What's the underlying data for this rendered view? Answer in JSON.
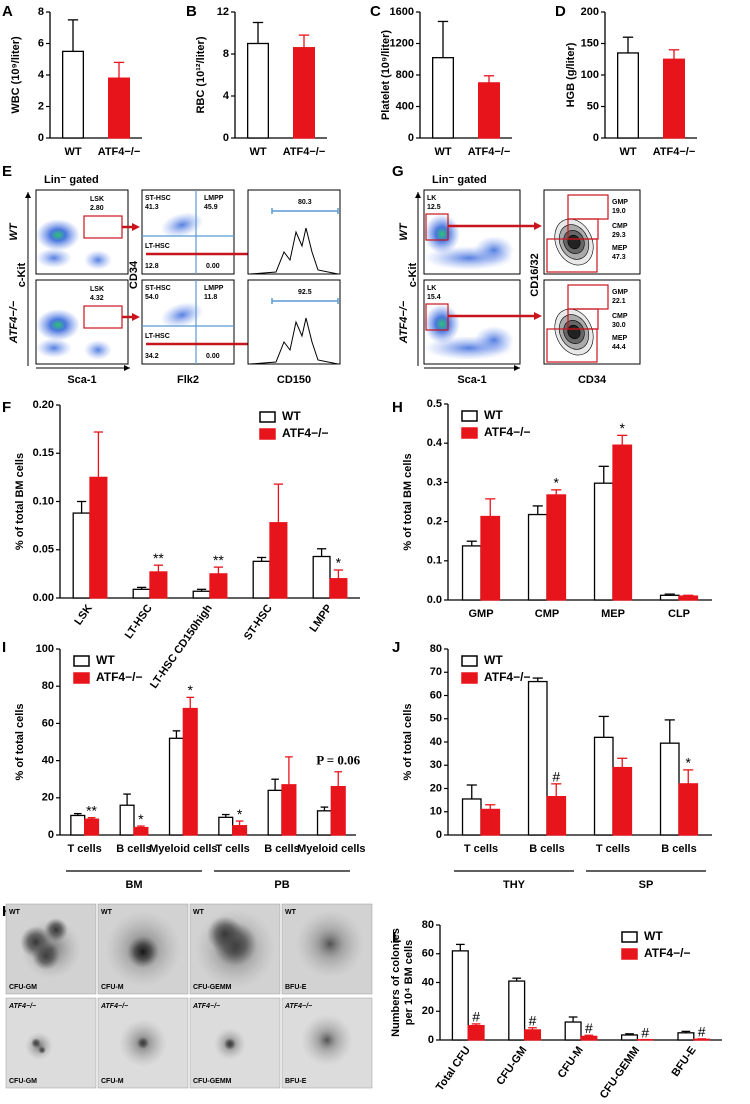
{
  "chart_data": [
    {
      "type": "bar",
      "panel": "A",
      "ylabel": "WBC (10⁹/liter)",
      "categories": [
        "WT",
        "ATF4−/−"
      ],
      "values": [
        5.5,
        3.8
      ],
      "errors": [
        2.0,
        1.0
      ],
      "colors": [
        "#ffffff",
        "#e8141c"
      ],
      "edgecolors": [
        "#000000",
        "#e8141c"
      ],
      "ylim": [
        0,
        8
      ],
      "yticks": [
        0,
        2,
        4,
        6,
        8
      ]
    },
    {
      "type": "bar",
      "panel": "B",
      "ylabel": "RBC (10¹²/liter)",
      "categories": [
        "WT",
        "ATF4−/−"
      ],
      "values": [
        9.0,
        8.6
      ],
      "errors": [
        2.0,
        1.2
      ],
      "colors": [
        "#ffffff",
        "#e8141c"
      ],
      "edgecolors": [
        "#000000",
        "#e8141c"
      ],
      "ylim": [
        0,
        12
      ],
      "yticks": [
        0,
        4,
        8,
        12
      ]
    },
    {
      "type": "bar",
      "panel": "C",
      "ylabel": "Platelet (10⁹/liter)",
      "categories": [
        "WT",
        "ATF4−/−"
      ],
      "values": [
        1020,
        700
      ],
      "errors": [
        460,
        90
      ],
      "colors": [
        "#ffffff",
        "#e8141c"
      ],
      "edgecolors": [
        "#000000",
        "#e8141c"
      ],
      "ylim": [
        0,
        1600
      ],
      "yticks": [
        0,
        400,
        800,
        1200,
        1600
      ]
    },
    {
      "type": "bar",
      "panel": "D",
      "ylabel": "HGB (g/liter)",
      "categories": [
        "WT",
        "ATF4−/−"
      ],
      "values": [
        135,
        125
      ],
      "errors": [
        25,
        15
      ],
      "colors": [
        "#ffffff",
        "#e8141c"
      ],
      "edgecolors": [
        "#000000",
        "#e8141c"
      ],
      "ylim": [
        0,
        200
      ],
      "yticks": [
        0,
        50,
        100,
        150,
        200
      ]
    },
    {
      "type": "bar",
      "panel": "F",
      "ylabel": "% of total BM cells",
      "legend": "top-right",
      "categories": [
        "LSK",
        "LT-HSC",
        "LT-HSC CD150high",
        "ST-HSC",
        "LMPP"
      ],
      "series": [
        {
          "name": "WT",
          "color": "#ffffff",
          "edgecolor": "#000000",
          "values": [
            0.088,
            0.009,
            0.007,
            0.038,
            0.043
          ],
          "errors": [
            0.012,
            0.002,
            0.002,
            0.004,
            0.008
          ]
        },
        {
          "name": "ATF4−/−",
          "color": "#e8141c",
          "edgecolor": "#e8141c",
          "values": [
            0.125,
            0.027,
            0.025,
            0.078,
            0.02
          ],
          "errors": [
            0.047,
            0.007,
            0.007,
            0.04,
            0.009
          ]
        }
      ],
      "significance": [
        null,
        "**",
        "**",
        null,
        "*"
      ],
      "ylim": [
        0,
        0.2
      ],
      "yticks": [
        {
          "value": 0,
          "label": "0.00"
        },
        0.05,
        {
          "value": 0.1,
          "label": "0.10"
        },
        0.15,
        {
          "value": 0.2,
          "label": "0.20"
        }
      ]
    },
    {
      "type": "bar",
      "panel": "H",
      "ylabel": "% of total BM cells",
      "legend": "top-left",
      "categories": [
        "GMP",
        "CMP",
        "MEP",
        "CLP"
      ],
      "series": [
        {
          "name": "WT",
          "color": "#ffffff",
          "edgecolor": "#000000",
          "values": [
            0.138,
            0.218,
            0.298,
            0.012
          ],
          "errors": [
            0.012,
            0.022,
            0.043,
            0.003
          ]
        },
        {
          "name": "ATF4−/−",
          "color": "#e8141c",
          "edgecolor": "#e8141c",
          "values": [
            0.213,
            0.268,
            0.395,
            0.01
          ],
          "errors": [
            0.045,
            0.013,
            0.025,
            0.002
          ]
        }
      ],
      "significance": [
        null,
        "*",
        "*",
        null
      ],
      "ylim": [
        0,
        0.5
      ],
      "yticks": [
        {
          "value": 0,
          "label": "0.0"
        },
        0.1,
        0.2,
        0.3,
        0.4,
        0.5
      ]
    },
    {
      "type": "bar",
      "panel": "I",
      "ylabel": "% of total cells",
      "legend": "top-left",
      "categories": [
        "T cells",
        "B cells",
        "Myeloid cells",
        "T cells",
        "B cells",
        "Myeloid cells"
      ],
      "groups": [
        "BM",
        "PB"
      ],
      "series": [
        {
          "name": "WT",
          "color": "#ffffff",
          "edgecolor": "#000000",
          "values": [
            10.5,
            16,
            52,
            9.5,
            24,
            13
          ],
          "errors": [
            1,
            6,
            4,
            1.5,
            6,
            2
          ]
        },
        {
          "name": "ATF4−/−",
          "color": "#e8141c",
          "edgecolor": "#e8141c",
          "values": [
            8.5,
            4,
            68,
            5,
            27,
            26
          ],
          "errors": [
            0.8,
            0.8,
            6,
            2.5,
            15,
            8
          ]
        }
      ],
      "significance": [
        "**",
        "*",
        "*",
        "*",
        null,
        "P = 0.06"
      ],
      "ylim": [
        0,
        100
      ],
      "yticks": [
        0,
        20,
        40,
        60,
        80,
        100
      ]
    },
    {
      "type": "bar",
      "panel": "J",
      "ylabel": "% of total cells",
      "legend": "top-left",
      "categories": [
        "T cells",
        "B cells",
        "T cells",
        "B cells"
      ],
      "groups": [
        "THY",
        "SP"
      ],
      "series": [
        {
          "name": "WT",
          "color": "#ffffff",
          "edgecolor": "#000000",
          "values": [
            15.5,
            66,
            42,
            39.5
          ],
          "errors": [
            6,
            1.5,
            9,
            10
          ]
        },
        {
          "name": "ATF4−/−",
          "color": "#e8141c",
          "edgecolor": "#e8141c",
          "values": [
            11,
            16.5,
            29,
            22
          ],
          "errors": [
            2,
            5.5,
            4,
            6
          ]
        }
      ],
      "significance": [
        null,
        "#",
        null,
        "*"
      ],
      "ylim": [
        0,
        80
      ],
      "yticks": [
        0,
        10,
        20,
        30,
        40,
        50,
        60,
        70,
        80
      ]
    },
    {
      "type": "bar",
      "panel": "L",
      "ylabel": [
        "Numbers of colonies",
        "per 10⁴ BM cells"
      ],
      "legend": "top-right",
      "categories": [
        "Total CFU",
        "CFU-GM",
        "CFU-M",
        "CFU-GEMM",
        "BFU-E"
      ],
      "series": [
        {
          "name": "WT",
          "color": "#ffffff",
          "edgecolor": "#000000",
          "values": [
            62,
            41,
            12.5,
            3.5,
            5
          ],
          "errors": [
            4.5,
            2,
            3.5,
            0.8,
            1
          ]
        },
        {
          "name": "ATF4−/−",
          "color": "#e8141c",
          "edgecolor": "#e8141c",
          "values": [
            10,
            7,
            2.5,
            0.2,
            0.5
          ],
          "errors": [
            1.2,
            1.5,
            0.8,
            0.1,
            0.3
          ]
        }
      ],
      "significance": [
        "#",
        "#",
        "#",
        "#",
        "#"
      ],
      "ylim": [
        0,
        80
      ],
      "yticks": [
        0,
        20,
        40,
        60,
        80
      ]
    }
  ],
  "flow_e": {
    "panel": "E",
    "gate_label": "Lin⁻ gated",
    "row_labels": [
      "WT",
      "ATF4−/−"
    ],
    "x_axes": [
      "Sca-1",
      "Flk2",
      "CD150"
    ],
    "y_axes": [
      "c-Kit",
      "CD34"
    ],
    "gate_names": [
      "LSK",
      "ST-HSC",
      "LMPP",
      "LT-HSC"
    ],
    "rows": [
      {
        "lsk": "2.80",
        "st_hsc": 41.3,
        "lmpp": 45.9,
        "lt_hsc": 12.8,
        "other": "0.00",
        "cd150_high": 80.3
      },
      {
        "lsk": 4.32,
        "st_hsc": "54.0",
        "lmpp": 11.8,
        "lt_hsc": 34.2,
        "other": "0.00",
        "cd150_high": 92.5
      }
    ]
  },
  "flow_g": {
    "panel": "G",
    "gate_label": "Lin⁻ gated",
    "row_labels": [
      "WT",
      "ATF4−/−"
    ],
    "x_axes": [
      "Sca-1",
      "CD34"
    ],
    "y_axes": [
      "c-Kit",
      "CD16/32"
    ],
    "gate_names": [
      "LK",
      "GMP",
      "CMP",
      "MEP"
    ],
    "rows": [
      {
        "lk": 12.5,
        "gmp": "19.0",
        "cmp": 29.3,
        "mep": 47.3
      },
      {
        "lk": 15.4,
        "gmp": 22.1,
        "cmp": "30.0",
        "mep": 44.4
      }
    ]
  },
  "colonies": {
    "panel": "K",
    "row_labels": [
      "WT",
      "ATF4−/−"
    ],
    "types": [
      "CFU-GM",
      "CFU-M",
      "CFU-GEMM",
      "BFU-E"
    ]
  }
}
